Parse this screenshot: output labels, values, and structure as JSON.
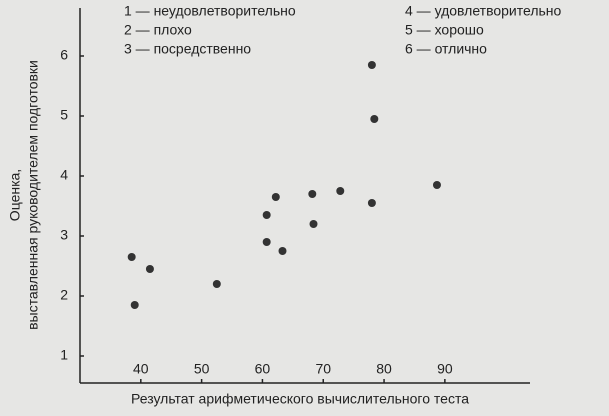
{
  "chart_data": {
    "type": "scatter",
    "legend": [
      "1 — неудовлетворительно",
      "2 — плохо",
      "3 — посредственно",
      "4 — удовлетворительно",
      "5 — хорошо",
      "6 — отлично"
    ],
    "xlabel": "Результат арифметического вычислительного теста",
    "ylabel": [
      "Оценка,",
      "выставленная руководителем подготовки"
    ],
    "x": [
      38.5,
      41.5,
      39,
      52.5,
      60.7,
      60.7,
      62.2,
      63.3,
      68.2,
      68.4,
      72.8,
      78,
      78.4,
      78,
      88.7
    ],
    "values": [
      2.65,
      2.45,
      1.85,
      2.2,
      2.9,
      3.35,
      3.65,
      2.75,
      3.7,
      3.2,
      3.75,
      5.85,
      4.95,
      3.55,
      3.85
    ],
    "color": "#333333",
    "xlim": [
      30,
      104
    ],
    "ylim": [
      0.55,
      6.8
    ],
    "xticks": [
      40,
      50,
      60,
      70,
      80,
      90
    ],
    "yticks": [
      1,
      2,
      3,
      4,
      5,
      6
    ]
  }
}
